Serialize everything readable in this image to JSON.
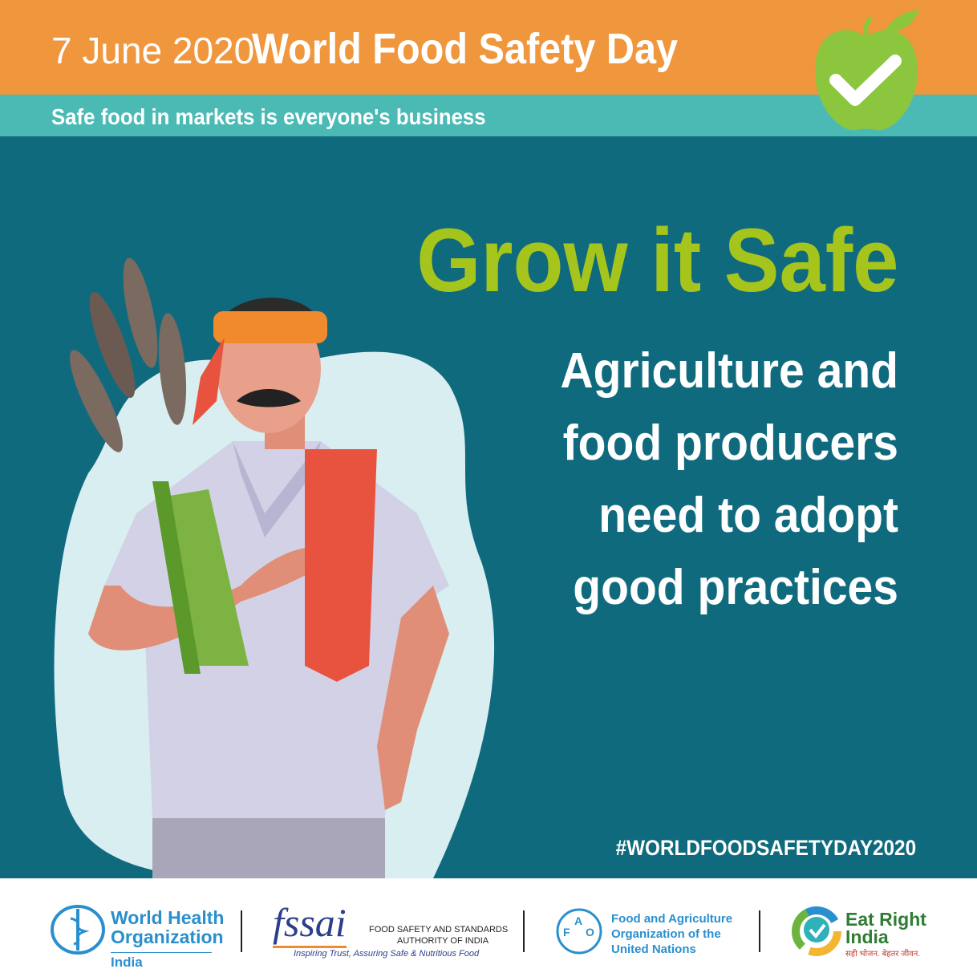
{
  "header": {
    "date": "7 June 2020",
    "title": "World Food Safety Day",
    "tagline": "Safe food in markets is everyone's business",
    "logo_icon": "apple-checkmark-icon"
  },
  "main": {
    "headline": "Grow it Safe",
    "message_lines": [
      "Agriculture and",
      "food producers",
      "need to adopt",
      "good practices"
    ],
    "hashtag": "#WORLDFOODSAFETYDAY2020"
  },
  "colors": {
    "orange": "#f0963c",
    "teal": "#4bbab5",
    "background": "#106a7e",
    "headline": "#a6c51c"
  },
  "footer": {
    "who": {
      "line1": "World Health",
      "line2": "Organization",
      "line3": "India"
    },
    "fssai": {
      "logo": "fssai",
      "name1": "FOOD SAFETY AND STANDARDS",
      "name2": "AUTHORITY OF INDIA",
      "motto": "Inspiring Trust, Assuring Safe & Nutritious Food"
    },
    "fao": {
      "line1": "Food and Agriculture",
      "line2": "Organization of the",
      "line3": "United Nations"
    },
    "eri": {
      "line1": "Eat Right",
      "line2": "India",
      "motto": "सही भोजन. बेहतर जीवन."
    }
  }
}
